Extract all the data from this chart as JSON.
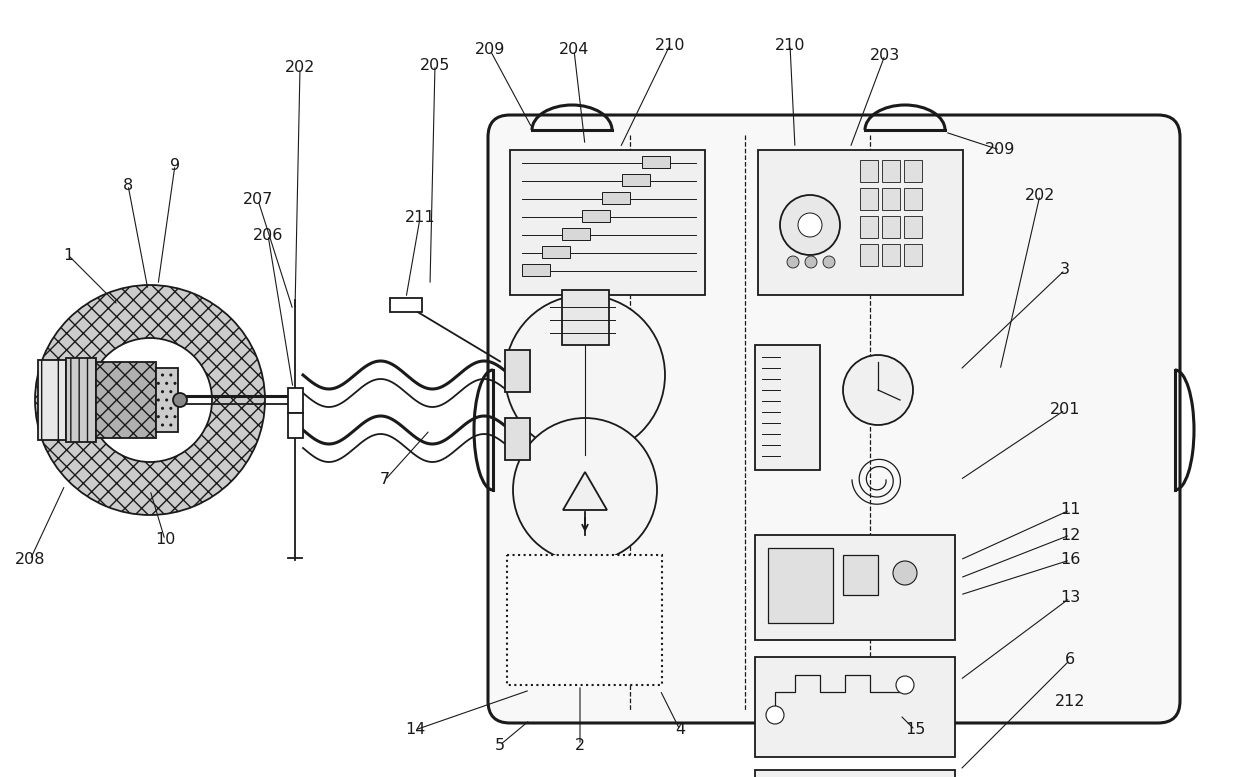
{
  "bg_color": "#ffffff",
  "lc": "#1a1a1a",
  "lw_main": 1.3,
  "lw_thick": 2.2,
  "lw_thin": 0.8,
  "fig_w": 12.39,
  "fig_h": 7.77,
  "dpi": 100
}
